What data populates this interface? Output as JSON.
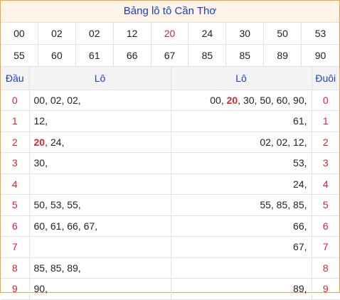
{
  "title": "Bảng lô tô Cần Thơ",
  "numbers": [
    "00",
    "02",
    "02",
    "12",
    "20",
    "24",
    "30",
    "50",
    "53",
    "55",
    "60",
    "61",
    "66",
    "67",
    "85",
    "85",
    "89",
    "90"
  ],
  "highlight_number": "20",
  "headers": {
    "dau": "Đầu",
    "lo_left": "Lô",
    "lo_right": "Lô",
    "duoi": "Đuôi"
  },
  "rows": [
    {
      "dau": "0",
      "left": [
        "00",
        "02",
        "02"
      ],
      "right": [
        "00",
        "20",
        "30",
        "50",
        "60",
        "90"
      ],
      "duoi": "0"
    },
    {
      "dau": "1",
      "left": [
        "12"
      ],
      "right": [
        "61"
      ],
      "duoi": "1"
    },
    {
      "dau": "2",
      "left": [
        "20",
        "24"
      ],
      "right": [
        "02",
        "02",
        "12"
      ],
      "duoi": "2"
    },
    {
      "dau": "3",
      "left": [
        "30"
      ],
      "right": [
        "53"
      ],
      "duoi": "3"
    },
    {
      "dau": "4",
      "left": [],
      "right": [
        "24"
      ],
      "duoi": "4"
    },
    {
      "dau": "5",
      "left": [
        "50",
        "53",
        "55"
      ],
      "right": [
        "55",
        "85",
        "85"
      ],
      "duoi": "5"
    },
    {
      "dau": "6",
      "left": [
        "60",
        "61",
        "66",
        "67"
      ],
      "right": [
        "66"
      ],
      "duoi": "6"
    },
    {
      "dau": "7",
      "left": [],
      "right": [
        "67"
      ],
      "duoi": "7"
    },
    {
      "dau": "8",
      "left": [
        "85",
        "85",
        "89"
      ],
      "right": [],
      "duoi": "8"
    },
    {
      "dau": "9",
      "left": [
        "90"
      ],
      "right": [
        "89"
      ],
      "duoi": "9"
    }
  ],
  "colors": {
    "accent_red": "#d6262c",
    "title_blue": "#1a3ec8",
    "frame_orange": "#f0a24a"
  }
}
